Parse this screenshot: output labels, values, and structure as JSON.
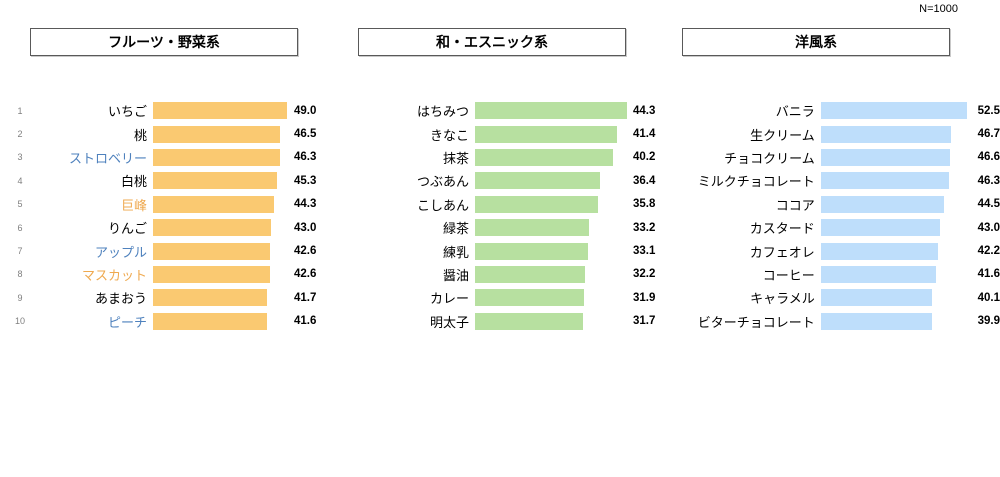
{
  "meta": {
    "sample_size_label": "N=1000"
  },
  "rank_column": {
    "values": [
      "1",
      "2",
      "3",
      "4",
      "5",
      "6",
      "7",
      "8",
      "9",
      "10"
    ]
  },
  "palette": {
    "fruit_bar": "#FAC971",
    "ethnic_bar": "#B7E0A0",
    "western_bar": "#BEDEFB",
    "label_blue": "#4E81BD",
    "label_orange": "#EFA94F",
    "label_black": "#000000",
    "rank_gray": "#7F7F7F"
  },
  "chart_data": [
    {
      "type": "bar",
      "orientation": "horizontal",
      "title": "フルーツ・野菜系",
      "categories": [
        "いちご",
        "桃",
        "ストロベリー",
        "白桃",
        "巨峰",
        "りんご",
        "アップル",
        "マスカット",
        "あまおう",
        "ピーチ"
      ],
      "values": [
        49.0,
        46.5,
        46.3,
        45.3,
        44.3,
        43.0,
        42.6,
        42.6,
        41.7,
        41.6
      ],
      "value_labels": [
        "49.0",
        "46.5",
        "46.3",
        "45.3",
        "44.3",
        "43.0",
        "42.6",
        "42.6",
        "41.7",
        "41.6"
      ],
      "label_colors": [
        "#000000",
        "#000000",
        "#4E81BD",
        "#000000",
        "#EFA94F",
        "#000000",
        "#4E81BD",
        "#EFA94F",
        "#000000",
        "#4E81BD"
      ],
      "bar_color": "#FAC971",
      "xlim": [
        0,
        50
      ],
      "grid": false,
      "legend": false
    },
    {
      "type": "bar",
      "orientation": "horizontal",
      "title": "和・エスニック系",
      "categories": [
        "はちみつ",
        "きなこ",
        "抹茶",
        "つぶあん",
        "こしあん",
        "緑茶",
        "練乳",
        "醤油",
        "カレー",
        "明太子"
      ],
      "values": [
        44.3,
        41.4,
        40.2,
        36.4,
        35.8,
        33.2,
        33.1,
        32.2,
        31.9,
        31.7
      ],
      "value_labels": [
        "44.3",
        "41.4",
        "40.2",
        "36.4",
        "35.8",
        "33.2",
        "33.1",
        "32.2",
        "31.9",
        "31.7"
      ],
      "label_colors": [
        "#000000",
        "#000000",
        "#000000",
        "#000000",
        "#000000",
        "#000000",
        "#000000",
        "#000000",
        "#000000",
        "#000000"
      ],
      "bar_color": "#B7E0A0",
      "xlim": [
        0,
        45
      ],
      "grid": false,
      "legend": false
    },
    {
      "type": "bar",
      "orientation": "horizontal",
      "title": "洋風系",
      "categories": [
        "バニラ",
        "生クリーム",
        "チョコクリーム",
        "ミルクチョコレート",
        "ココア",
        "カスタード",
        "カフェオレ",
        "コーヒー",
        "キャラメル",
        "ビターチョコレート"
      ],
      "values": [
        52.5,
        46.7,
        46.6,
        46.3,
        44.5,
        43.0,
        42.2,
        41.6,
        40.1,
        39.9
      ],
      "value_labels": [
        "52.5",
        "46.7",
        "46.6",
        "46.3",
        "44.5",
        "43.0",
        "42.2",
        "41.6",
        "40.1",
        "39.9"
      ],
      "label_colors": [
        "#000000",
        "#000000",
        "#000000",
        "#000000",
        "#000000",
        "#000000",
        "#000000",
        "#000000",
        "#000000",
        "#000000"
      ],
      "bar_color": "#BEDEFB",
      "xlim": [
        0,
        55
      ],
      "grid": false,
      "legend": false
    }
  ]
}
